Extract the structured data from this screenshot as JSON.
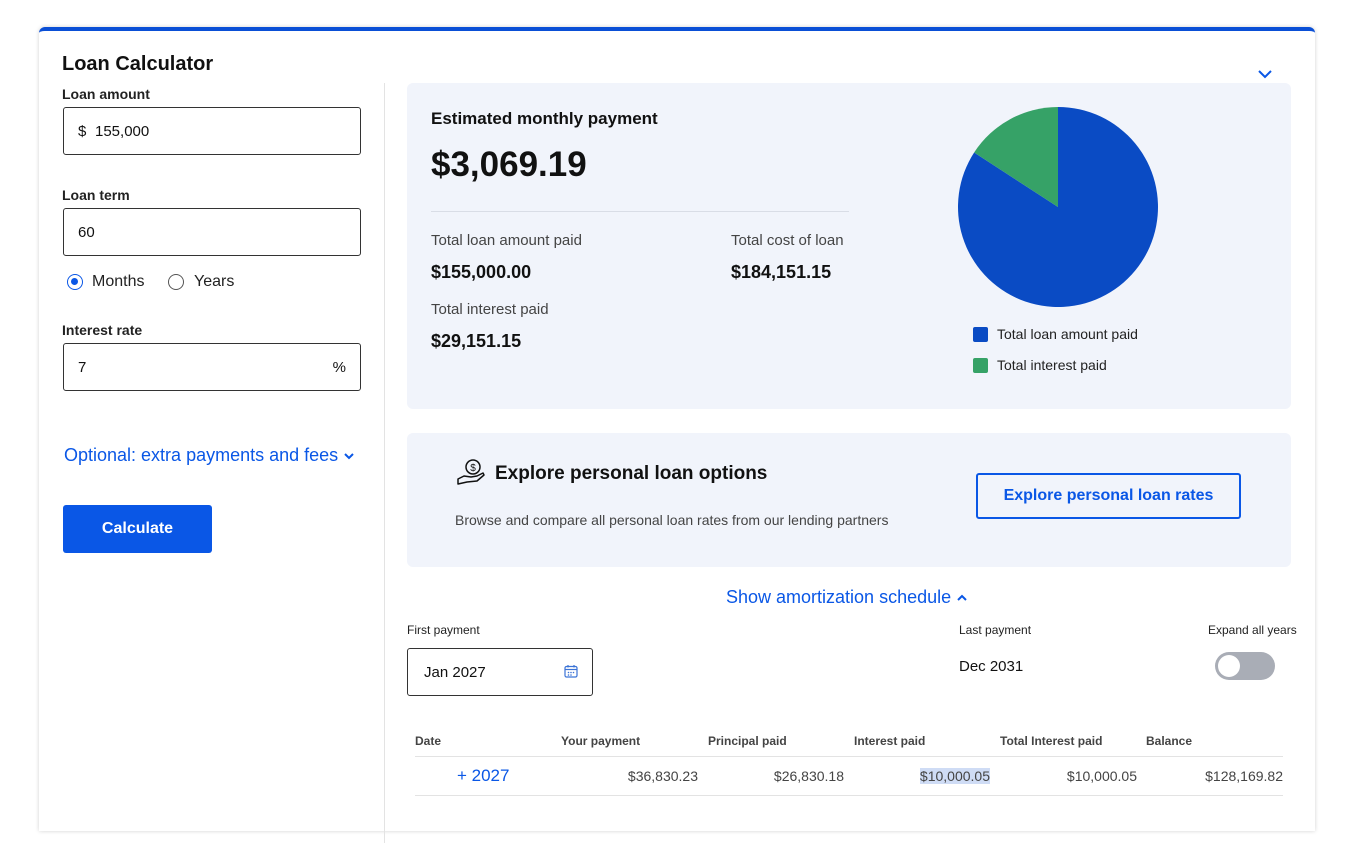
{
  "calculator": {
    "title": "Loan Calculator",
    "loan_amount": {
      "label": "Loan amount",
      "currency": "$",
      "value": "155,000"
    },
    "loan_term": {
      "label": "Loan term",
      "value": "60",
      "options": [
        "Months",
        "Years"
      ],
      "selected": "Months"
    },
    "interest_rate": {
      "label": "Interest rate",
      "value": "7",
      "unit": "%"
    },
    "optional_link": "Optional: extra payments and fees",
    "calculate_label": "Calculate"
  },
  "summary": {
    "heading": "Estimated monthly payment",
    "monthly_payment": "$3,069.19",
    "total_loan_label": "Total loan amount paid",
    "total_loan_value": "$155,000.00",
    "total_cost_label": "Total cost of loan",
    "total_cost_value": "$184,151.15",
    "total_interest_label": "Total interest paid",
    "total_interest_value": "$29,151.15"
  },
  "chart_data": {
    "type": "pie",
    "slices": [
      {
        "label": "Total loan amount paid",
        "value": 155000.0,
        "color": "#0a4bc4"
      },
      {
        "label": "Total interest paid",
        "value": 29151.15,
        "color": "#36a267"
      }
    ],
    "legend_position": "bottom"
  },
  "explore": {
    "title": "Explore personal loan options",
    "subtitle": "Browse and compare all personal loan rates from our lending partners",
    "button_label": "Explore personal loan rates",
    "icon": "hand-coin-icon"
  },
  "amortization": {
    "toggle_link": "Show amortization schedule",
    "first_payment_label": "First payment",
    "first_payment_value": "Jan 2027",
    "last_payment_label": "Last payment",
    "last_payment_value": "Dec 2031",
    "expand_label": "Expand all years",
    "expand_on": false,
    "columns": [
      "Date",
      "Your payment",
      "Principal paid",
      "Interest paid",
      "Total Interest paid",
      "Balance"
    ],
    "rows": [
      {
        "year": "+ 2027",
        "payment": "$36,830.23",
        "principal": "$26,830.18",
        "interest": "$10,000.05",
        "total_interest": "$10,000.05",
        "balance": "$128,169.82"
      }
    ]
  },
  "colors": {
    "accent": "#0a57e6",
    "panel": "#f1f4fb"
  }
}
